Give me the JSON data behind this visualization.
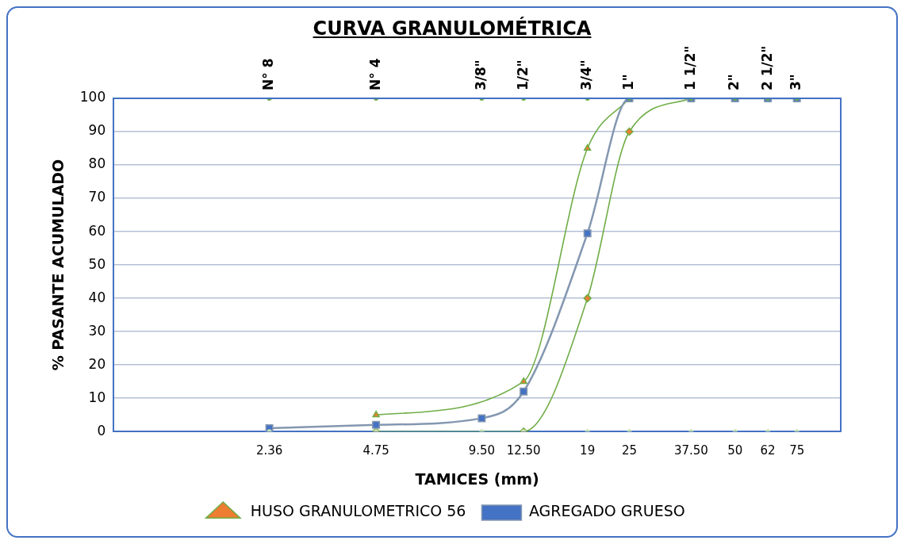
{
  "chart_data": {
    "type": "line",
    "title": "CURVA GRANULOMÉTRICA",
    "xlabel": "TAMICES (mm)",
    "ylabel": "% PASANTE ACUMULADO",
    "log": "x",
    "xlim": [
      0.85,
      100
    ],
    "xticks": [
      {
        "value": 2.36,
        "label": "2.36"
      },
      {
        "value": 4.75,
        "label": "4.75"
      },
      {
        "value": 9.5,
        "label": "9.50"
      },
      {
        "value": 12.5,
        "label": "12.50"
      },
      {
        "value": 19,
        "label": "19"
      },
      {
        "value": 25,
        "label": "25"
      },
      {
        "value": 37.5,
        "label": "37.50"
      },
      {
        "value": 50,
        "label": "50"
      },
      {
        "value": 62,
        "label": "62"
      },
      {
        "value": 75,
        "label": "75"
      }
    ],
    "annotations": [
      {
        "text": "N° 8",
        "x": 2.36,
        "y": 100
      },
      {
        "text": "N° 4",
        "x": 4.75,
        "y": 100
      },
      {
        "text": "3/8\"",
        "x": 9.5,
        "y": 100
      },
      {
        "text": "1/2\"",
        "x": 12.5,
        "y": 100
      },
      {
        "text": "3/4\"",
        "x": 19,
        "y": 100
      },
      {
        "text": "1\"",
        "x": 25,
        "y": 100
      },
      {
        "text": "1 1/2\"",
        "x": 37.5,
        "y": 100
      },
      {
        "text": "2\"",
        "x": 50,
        "y": 100
      },
      {
        "text": "2 1/2\"",
        "x": 62,
        "y": 100
      },
      {
        "text": "3\"",
        "x": 75,
        "y": 100
      }
    ],
    "ylim": [
      0,
      100
    ],
    "yticks": [
      0,
      10,
      20,
      30,
      40,
      50,
      60,
      70,
      80,
      90,
      100
    ],
    "grid": "y",
    "legend": "bottom",
    "series": [
      {
        "type": "scatter",
        "color": "#70ad47",
        "marker": "circle",
        "x": [
          2.36,
          4.75,
          9.5,
          12.5,
          19,
          25,
          37.5,
          50,
          62,
          75
        ],
        "values": [
          100,
          100,
          100,
          100,
          100,
          100,
          100,
          100,
          100,
          100
        ]
      },
      {
        "type": "scatter",
        "color": "#c5e0b4",
        "marker": "circle",
        "x": [
          2.36,
          4.75,
          9.5,
          12.5,
          19,
          25,
          37.5,
          50,
          62,
          75
        ],
        "values": [
          0,
          0,
          0,
          0,
          0,
          0,
          0,
          0,
          0,
          0
        ]
      },
      {
        "name": "HUSO GRANULOMETRICO 56",
        "color": "#70ad47",
        "marker": "triangle",
        "x": [
          4.75,
          12.5,
          19,
          25
        ],
        "values": [
          5,
          15,
          85,
          100
        ]
      },
      {
        "color": "#70ad47",
        "marker": "diamond",
        "x": [
          4.75,
          12.5,
          19,
          25,
          37.5
        ],
        "values": [
          0,
          0,
          40,
          90,
          100
        ]
      },
      {
        "name": "AGREGADO GRUESO",
        "color": "#8497b0",
        "marker": "square",
        "x": [
          2.36,
          4.75,
          9.5,
          12.5,
          19,
          25,
          37.5,
          50,
          62,
          75
        ],
        "values": [
          1,
          2,
          4,
          12,
          59.5,
          100,
          100,
          100,
          100,
          100
        ]
      }
    ]
  }
}
